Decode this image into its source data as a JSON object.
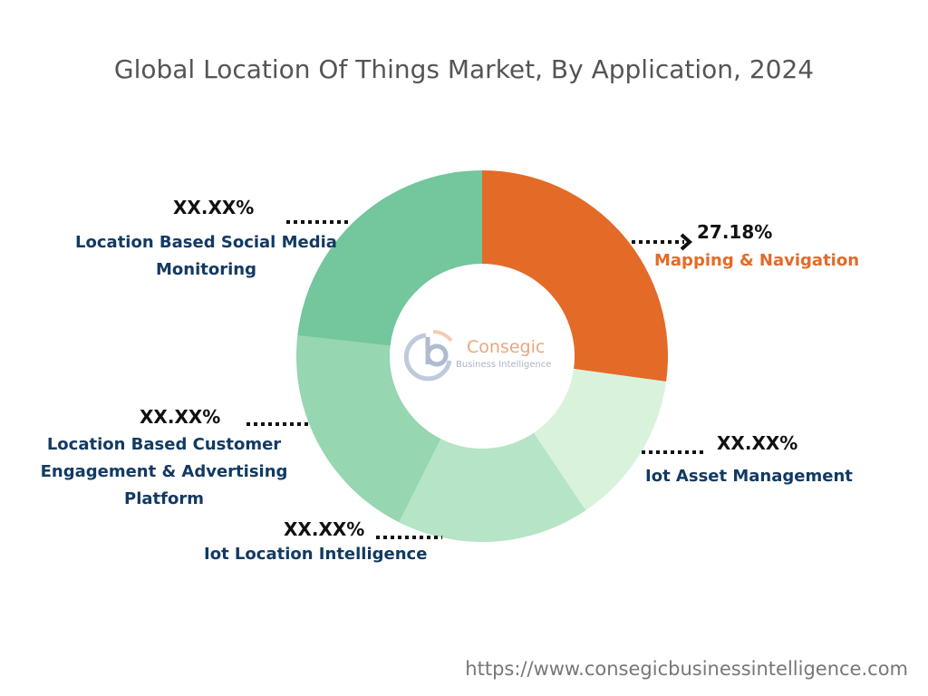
{
  "chart_data": {
    "type": "pie",
    "title": "Global Location Of Things Market, By Application, 2024",
    "donut": true,
    "slices": [
      {
        "name": "Mapping & Navigation",
        "value": 27.18,
        "label": "27.18%",
        "color": "#e46a27",
        "text_color": "#e46a27"
      },
      {
        "name": "Iot Asset Management",
        "value": 13.4,
        "label": "XX.XX%",
        "color": "#d9f2dc",
        "text_color": "#123a63"
      },
      {
        "name": "Iot Location Intelligence",
        "value": 16.8,
        "label": "XX.XX%",
        "color": "#b5e4c6",
        "text_color": "#123a63"
      },
      {
        "name": "Location Based Customer Engagement & Advertising Platform",
        "value": 19.4,
        "label": "XX.XX%",
        "color": "#96d6b0",
        "text_color": "#123a63"
      },
      {
        "name": "Location Based Social Media Monitoring",
        "value": 23.22,
        "label": "XX.XX%",
        "color": "#74c69d",
        "text_color": "#123a63"
      }
    ]
  },
  "logo": {
    "line1": "Consegic",
    "line2": "Business Intelligence"
  },
  "footer": "https://www.consegicbusinessintelligence.com"
}
